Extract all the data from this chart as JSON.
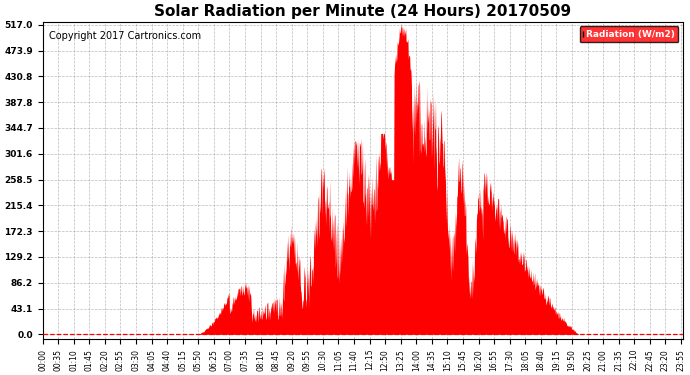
{
  "title": "Solar Radiation per Minute (24 Hours) 20170509",
  "copyright_text": "Copyright 2017 Cartronics.com",
  "legend_label": "Radiation (W/m2)",
  "y_ticks": [
    0.0,
    43.1,
    86.2,
    129.2,
    172.3,
    215.4,
    258.5,
    301.6,
    344.7,
    387.8,
    430.8,
    473.9,
    517.0
  ],
  "y_max": 517.0,
  "fill_color": "#FF0000",
  "line_color": "#FF0000",
  "bg_color": "#FFFFFF",
  "grid_color": "#AAAAAA",
  "dashed_line_color": "#FF0000",
  "title_fontsize": 11,
  "copyright_fontsize": 7,
  "legend_bg": "#FF0000",
  "legend_text_color": "#FFFFFF",
  "tick_interval_minutes": 35,
  "n_minutes": 1440,
  "sunrise_hour": 5.83,
  "sunset_hour": 20.1,
  "figwidth": 6.9,
  "figheight": 3.75,
  "dpi": 100
}
